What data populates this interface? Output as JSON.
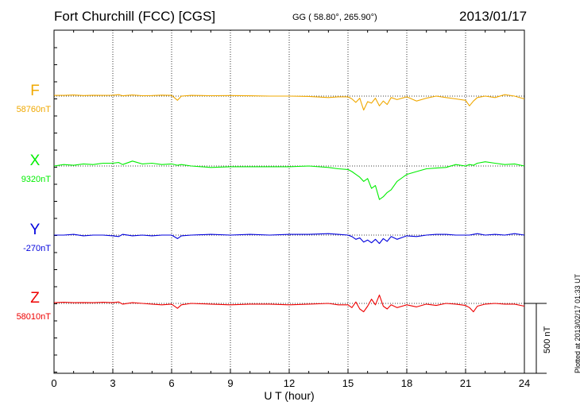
{
  "header": {
    "station": "Fort Churchill (FCC)  [CGS]",
    "coords": "GG ( 58.80°, 265.90°)",
    "date": "2013/01/17"
  },
  "plotted_note": "Plotted at 2013/02/17 01:33 UT",
  "chart_data": {
    "type": "line",
    "xlabel": "U T (hour)",
    "xlim": [
      0,
      24
    ],
    "x_ticks": [
      "0",
      "3",
      "6",
      "9",
      "12",
      "15",
      "18",
      "21",
      "24"
    ],
    "scale_label": "500 nT",
    "scale_nT": 500,
    "grid": "dotted vertical lines every 3 hours; dotted baseline per channel",
    "series": [
      {
        "name": "F",
        "baseline_label": "58760nT",
        "color": "#f0a800",
        "x": [
          0,
          0.5,
          1,
          1.5,
          2,
          2.5,
          3,
          3.3,
          3.5,
          4,
          4.5,
          5,
          5.5,
          6,
          6.3,
          6.5,
          7,
          8,
          9,
          10,
          11,
          12,
          13,
          14,
          14.5,
          15,
          15.2,
          15.4,
          15.6,
          15.8,
          16,
          16.2,
          16.4,
          16.6,
          16.8,
          17,
          17.2,
          17.5,
          18,
          18.5,
          19,
          19.5,
          20,
          20.5,
          21,
          21.2,
          21.4,
          21.6,
          22,
          22.5,
          23,
          23.5,
          24
        ],
        "y": [
          5,
          5,
          8,
          4,
          6,
          5,
          6,
          10,
          2,
          8,
          3,
          4,
          7,
          5,
          -30,
          0,
          5,
          3,
          4,
          2,
          0,
          0,
          -2,
          -10,
          -5,
          -5,
          -20,
          -45,
          -15,
          -100,
          -40,
          -50,
          -15,
          -70,
          -35,
          -60,
          -10,
          -25,
          -5,
          -35,
          -15,
          0,
          -10,
          -20,
          -30,
          -70,
          -35,
          -10,
          0,
          -10,
          10,
          0,
          -20
        ]
      },
      {
        "name": "X",
        "baseline_label": "9320nT",
        "color": "#00ee00",
        "x": [
          0,
          0.5,
          1,
          1.5,
          2,
          2.5,
          3,
          3.3,
          3.5,
          4,
          4.5,
          5,
          5.5,
          6,
          6.3,
          6.5,
          7,
          8,
          9,
          10,
          11,
          12,
          13,
          14,
          14.5,
          15,
          15.2,
          15.4,
          15.6,
          15.8,
          16,
          16.2,
          16.4,
          16.6,
          16.8,
          17,
          17.2,
          17.5,
          18,
          18.5,
          19,
          19.5,
          20,
          20.5,
          21,
          21.2,
          21.4,
          21.6,
          22,
          22.5,
          23,
          23.5,
          24
        ],
        "y": [
          0,
          10,
          5,
          15,
          10,
          20,
          20,
          25,
          10,
          35,
          15,
          20,
          10,
          15,
          5,
          10,
          0,
          -10,
          -5,
          -5,
          -5,
          -5,
          0,
          -10,
          -20,
          -25,
          -40,
          -60,
          -80,
          -110,
          -90,
          -160,
          -140,
          -240,
          -220,
          -190,
          -170,
          -110,
          -60,
          -40,
          -20,
          -15,
          -10,
          10,
          0,
          10,
          5,
          20,
          30,
          20,
          10,
          15,
          0
        ]
      },
      {
        "name": "Y",
        "baseline_label": "-270nT",
        "color": "#0000dd",
        "x": [
          0,
          0.5,
          1,
          1.5,
          2,
          2.5,
          3,
          3.3,
          3.5,
          4,
          4.5,
          5,
          5.5,
          6,
          6.3,
          6.5,
          7,
          8,
          9,
          10,
          11,
          12,
          13,
          14,
          14.5,
          15,
          15.2,
          15.4,
          15.6,
          15.8,
          16,
          16.2,
          16.4,
          16.6,
          16.8,
          17,
          17.2,
          17.5,
          18,
          18.5,
          19,
          19.5,
          20,
          20.5,
          21,
          21.2,
          21.4,
          21.6,
          22,
          22.5,
          23,
          23.5,
          24
        ],
        "y": [
          0,
          0,
          5,
          -5,
          0,
          0,
          -5,
          -10,
          5,
          -5,
          0,
          -5,
          0,
          0,
          -25,
          -5,
          0,
          5,
          0,
          5,
          0,
          5,
          5,
          10,
          5,
          0,
          -10,
          -30,
          -20,
          -50,
          -35,
          -55,
          -30,
          -60,
          -25,
          -45,
          -10,
          -30,
          -5,
          -10,
          0,
          5,
          5,
          0,
          0,
          0,
          5,
          10,
          0,
          5,
          0,
          10,
          0
        ]
      },
      {
        "name": "Z",
        "baseline_label": "58010nT",
        "color": "#ee0000",
        "x": [
          0,
          0.5,
          1,
          1.5,
          2,
          2.5,
          3,
          3.3,
          3.5,
          4,
          4.5,
          5,
          5.5,
          6,
          6.3,
          6.5,
          7,
          8,
          9,
          10,
          11,
          12,
          13,
          14,
          14.5,
          15,
          15.2,
          15.4,
          15.6,
          15.8,
          16,
          16.2,
          16.4,
          16.6,
          16.8,
          17,
          17.2,
          17.5,
          18,
          18.5,
          19,
          19.5,
          20,
          20.5,
          21,
          21.2,
          21.4,
          21.6,
          22,
          22.5,
          23,
          23.5,
          24
        ],
        "y": [
          5,
          8,
          5,
          6,
          5,
          8,
          5,
          10,
          -5,
          5,
          0,
          -5,
          -10,
          -5,
          -35,
          -10,
          0,
          -5,
          -10,
          -5,
          -5,
          -10,
          -5,
          0,
          -10,
          -10,
          -30,
          10,
          -40,
          -60,
          -20,
          30,
          -10,
          60,
          -20,
          -40,
          -10,
          -30,
          -10,
          -25,
          -5,
          -15,
          0,
          -5,
          -15,
          -30,
          -60,
          -20,
          -5,
          0,
          -5,
          -5,
          -20
        ]
      }
    ]
  }
}
